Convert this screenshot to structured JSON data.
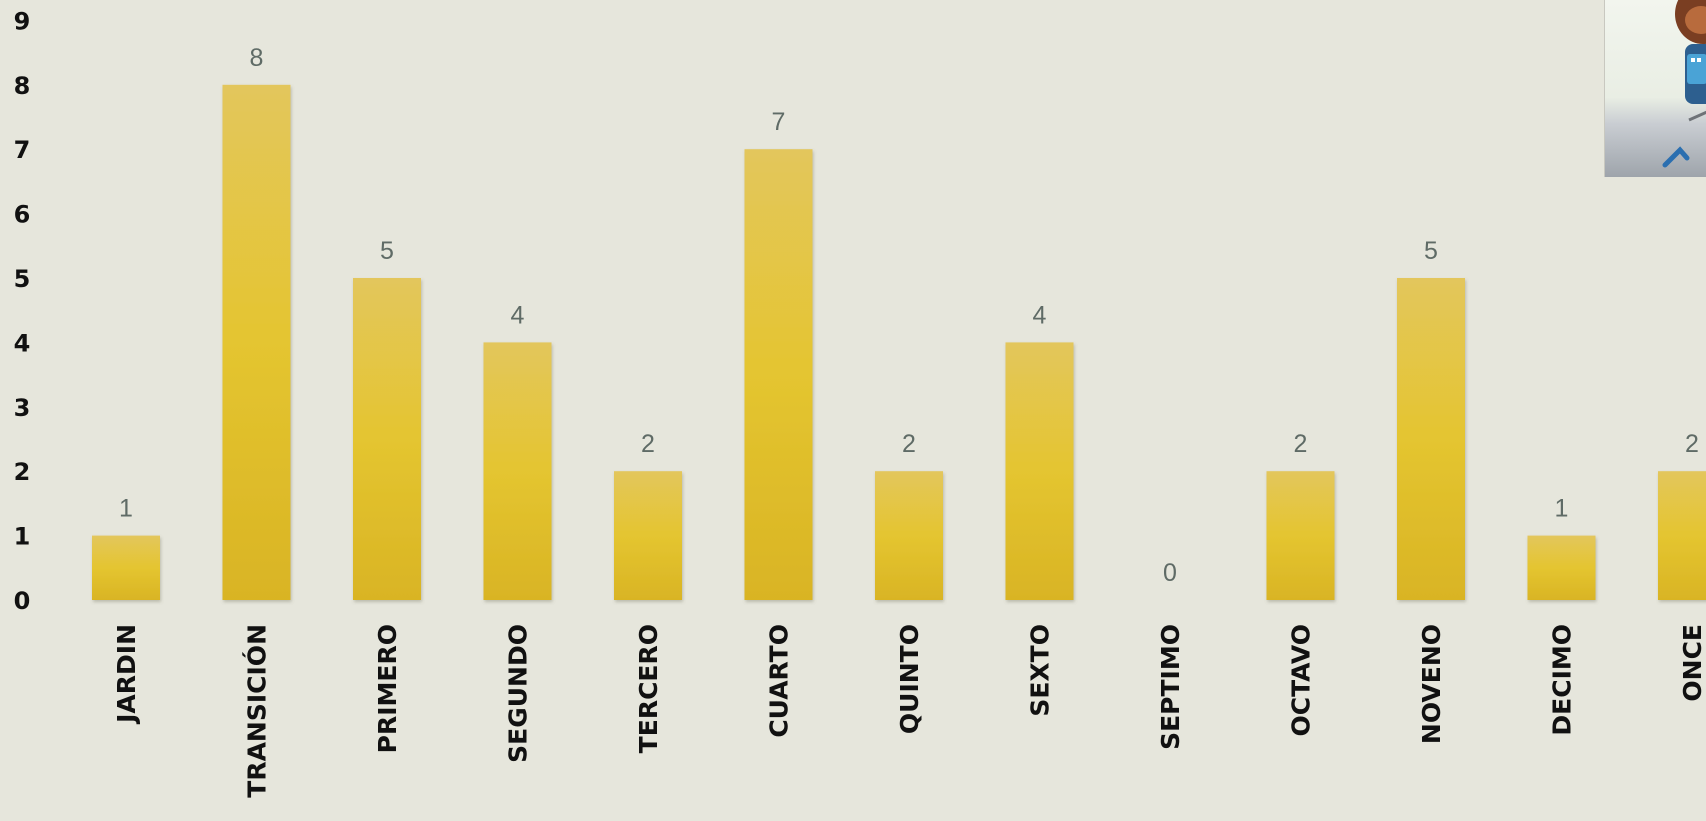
{
  "chart_data": {
    "type": "bar",
    "categories": [
      "JARDIN",
      "TRANSICIÓN",
      "PRIMERO",
      "SEGUNDO",
      "TERCERO",
      "CUARTO",
      "QUINTO",
      "SEXTO",
      "SEPTIMO",
      "OCTAVO",
      "NOVENO",
      "DECIMO",
      "ONCE"
    ],
    "values": [
      1,
      8,
      5,
      4,
      2,
      7,
      2,
      4,
      0,
      2,
      5,
      1,
      2
    ],
    "yticks": [
      "0",
      "1",
      "2",
      "3",
      "4",
      "5",
      "6",
      "7",
      "8",
      "9"
    ],
    "ylim": [
      0,
      9
    ],
    "grid": false,
    "legend": "none",
    "title": "",
    "xlabel": "",
    "ylabel": "",
    "colors": {
      "bar_top": "#e3c65c",
      "bar_mid": "#e4c530",
      "bar_bottom": "#d9b424",
      "data_label": "#5f6b66",
      "tick_label": "#111111",
      "background": "#e6e6dc"
    }
  },
  "photo": {
    "icon": "person-illustration-icon"
  }
}
